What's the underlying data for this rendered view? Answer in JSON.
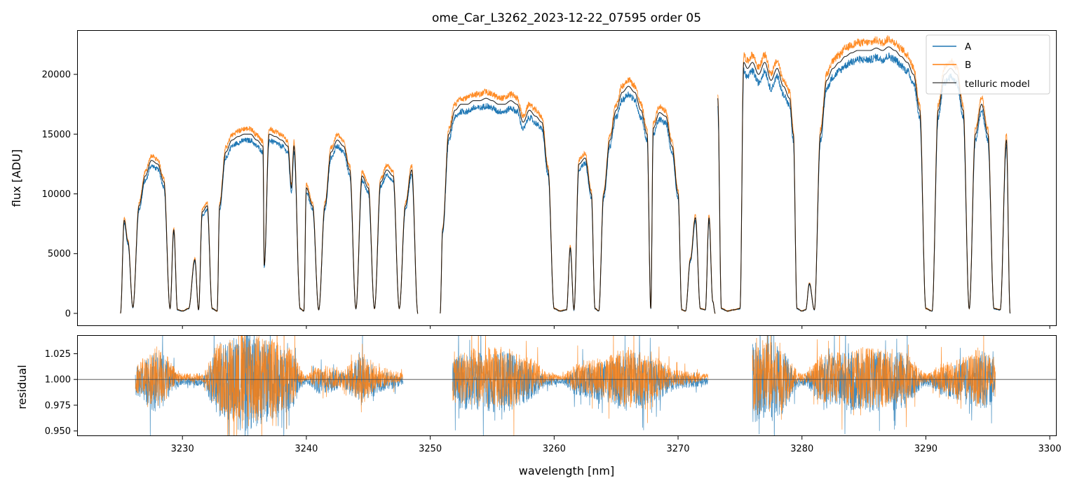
{
  "chart_data": [
    {
      "panel": "main",
      "type": "line",
      "title": "ome_Car_L3262_2023-12-22_07595  order 05",
      "xlabel": "",
      "ylabel": "flux [ADU]",
      "xlim": [
        3221.5,
        3300.5
      ],
      "ylim": [
        -1000,
        23700
      ],
      "yticks": [
        0,
        5000,
        10000,
        15000,
        20000
      ],
      "xticks": [
        3230,
        3240,
        3250,
        3260,
        3270,
        3280,
        3290,
        3300
      ],
      "grid": false,
      "legend": {
        "placement": "top-right",
        "entries": [
          "A",
          "B",
          "telluric model"
        ]
      },
      "series": [
        {
          "name": "A",
          "color": "#1f77b4"
        },
        {
          "name": "B",
          "color": "#ff7f0e"
        },
        {
          "name": "telluric model",
          "color": "#000000"
        }
      ],
      "segments": [
        {
          "x": [
            3225.0,
            3225.3,
            3225.6,
            3226.0,
            3226.5,
            3227.0,
            3227.5,
            3228.0,
            3228.5,
            3229.0,
            3229.3,
            3229.6,
            3230.0,
            3230.5,
            3231.0,
            3231.3,
            3231.6,
            3232.0,
            3232.4,
            3232.8,
            3233.0,
            3233.5,
            3234.0,
            3234.5,
            3235.0,
            3235.5,
            3236.0,
            3236.5,
            3236.6,
            3237.0,
            3237.5,
            3238.0,
            3238.5,
            3238.8,
            3239.0,
            3239.5,
            3239.8,
            3240.0,
            3240.5,
            3241.0,
            3241.5,
            3242.0,
            3242.5,
            3243.0,
            3243.5,
            3244.0,
            3244.5,
            3245.0,
            3245.5,
            3246.0,
            3246.5,
            3247.0,
            3247.5,
            3248.0,
            3248.5,
            3249.0
          ],
          "y": [
            0,
            7800,
            6000,
            500,
            9000,
            11500,
            12800,
            12500,
            11000,
            400,
            7000,
            300,
            200,
            400,
            4500,
            300,
            8500,
            9000,
            400,
            200,
            9000,
            13500,
            14500,
            14800,
            15000,
            15000,
            14500,
            14000,
            4000,
            15000,
            14800,
            14500,
            14000,
            10500,
            14000,
            400,
            200,
            10500,
            9000,
            300,
            9000,
            13500,
            14500,
            14000,
            12000,
            400,
            11500,
            10500,
            400,
            11000,
            12000,
            11500,
            400,
            9000,
            12000,
            0
          ]
        },
        {
          "x": [
            3250.8,
            3251.0,
            3251.5,
            3252.0,
            3252.5,
            3253.0,
            3253.5,
            3254.0,
            3254.5,
            3255.0,
            3255.5,
            3256.0,
            3256.5,
            3257.0,
            3257.5,
            3258.0,
            3258.5,
            3259.0,
            3259.5,
            3260.0,
            3260.5,
            3261.0,
            3261.3,
            3261.6,
            3262.0,
            3262.5,
            3263.0,
            3263.3,
            3263.6,
            3264.0,
            3264.5,
            3265.0,
            3265.5,
            3266.0,
            3266.5,
            3267.0,
            3267.5,
            3267.8,
            3268.0,
            3268.5,
            3269.0,
            3269.5,
            3270.0,
            3270.3,
            3270.6,
            3271.0,
            3271.4,
            3271.8,
            3272.2,
            3272.5,
            3272.8,
            3273.0
          ],
          "y": [
            0,
            7000,
            15000,
            17000,
            17500,
            17500,
            17800,
            17800,
            18000,
            17800,
            17500,
            17500,
            17800,
            17500,
            16000,
            17000,
            16500,
            16000,
            12000,
            400,
            200,
            300,
            5500,
            300,
            12500,
            13000,
            10000,
            400,
            200,
            10000,
            14500,
            17000,
            18500,
            19000,
            18500,
            17000,
            15000,
            400,
            15500,
            16800,
            16500,
            14000,
            10000,
            300,
            200,
            4500,
            8000,
            400,
            300,
            8000,
            1000,
            0
          ]
        },
        {
          "x": [
            3273.2,
            3273.5,
            3274.0,
            3274.5,
            3275.0,
            3275.3,
            3275.6,
            3276.0,
            3276.5,
            3277.0,
            3277.5,
            3278.0,
            3278.5,
            3279.0,
            3279.3,
            3279.6,
            3280.0,
            3280.3,
            3280.6,
            3281.0,
            3281.5,
            3282.0,
            3282.5,
            3283.0,
            3283.5,
            3284.0,
            3284.5,
            3285.0,
            3285.5,
            3286.0,
            3286.5,
            3287.0,
            3287.5,
            3288.0,
            3288.5,
            3289.0,
            3289.5,
            3290.0,
            3290.5,
            3291.0,
            3291.5,
            3292.0,
            3292.5,
            3293.0,
            3293.5,
            3294.0,
            3294.5,
            3295.0,
            3295.5,
            3296.0,
            3296.5,
            3296.8
          ],
          "y": [
            18000,
            400,
            200,
            300,
            400,
            21000,
            20500,
            21000,
            20000,
            21000,
            19500,
            20500,
            19000,
            18000,
            15000,
            400,
            200,
            300,
            2500,
            300,
            15000,
            19500,
            20500,
            21000,
            21500,
            21800,
            22000,
            22000,
            22000,
            22200,
            22000,
            22300,
            22000,
            21500,
            21000,
            20000,
            17000,
            400,
            200,
            17000,
            20000,
            20500,
            20000,
            17000,
            400,
            15000,
            17500,
            15000,
            400,
            300,
            14500,
            0
          ]
        }
      ]
    },
    {
      "panel": "residual",
      "type": "line",
      "xlabel": "wavelength [nm]",
      "ylabel": "residual",
      "xlim": [
        3221.5,
        3300.5
      ],
      "ylim": [
        0.945,
        1.043
      ],
      "yticks": [
        0.95,
        0.975,
        1.0,
        1.025
      ],
      "xticks": [
        3230,
        3240,
        3250,
        3260,
        3270,
        3280,
        3290,
        3300
      ],
      "reference_line": 1.0,
      "grid": false,
      "series": [
        {
          "name": "A",
          "color": "#1f77b4"
        },
        {
          "name": "B",
          "color": "#ff7f0e"
        }
      ],
      "x_ranges": [
        [
          3226.2,
          3247.8
        ],
        [
          3251.8,
          3272.4
        ],
        [
          3276.0,
          3295.6
        ]
      ],
      "noise_envelope": {
        "x": [
          3226.2,
          3228.0,
          3230.0,
          3231.5,
          3233.0,
          3235.0,
          3237.0,
          3238.5,
          3240.0,
          3241.0,
          3243.0,
          3244.5,
          3246.0,
          3247.8,
          3251.8,
          3254.0,
          3256.0,
          3258.0,
          3259.5,
          3260.5,
          3262.0,
          3264.0,
          3266.0,
          3268.0,
          3270.0,
          3272.4,
          3276.0,
          3278.0,
          3280.0,
          3282.0,
          3285.0,
          3288.0,
          3290.0,
          3291.5,
          3293.0,
          3294.5,
          3295.6
        ],
        "amplitude": [
          0.015,
          0.03,
          0.004,
          0.004,
          0.035,
          0.05,
          0.04,
          0.03,
          0.003,
          0.012,
          0.01,
          0.025,
          0.01,
          0.005,
          0.025,
          0.03,
          0.03,
          0.02,
          0.005,
          0.002,
          0.015,
          0.02,
          0.03,
          0.02,
          0.008,
          0.004,
          0.04,
          0.035,
          0.004,
          0.025,
          0.03,
          0.028,
          0.005,
          0.015,
          0.02,
          0.03,
          0.02
        ]
      }
    }
  ]
}
